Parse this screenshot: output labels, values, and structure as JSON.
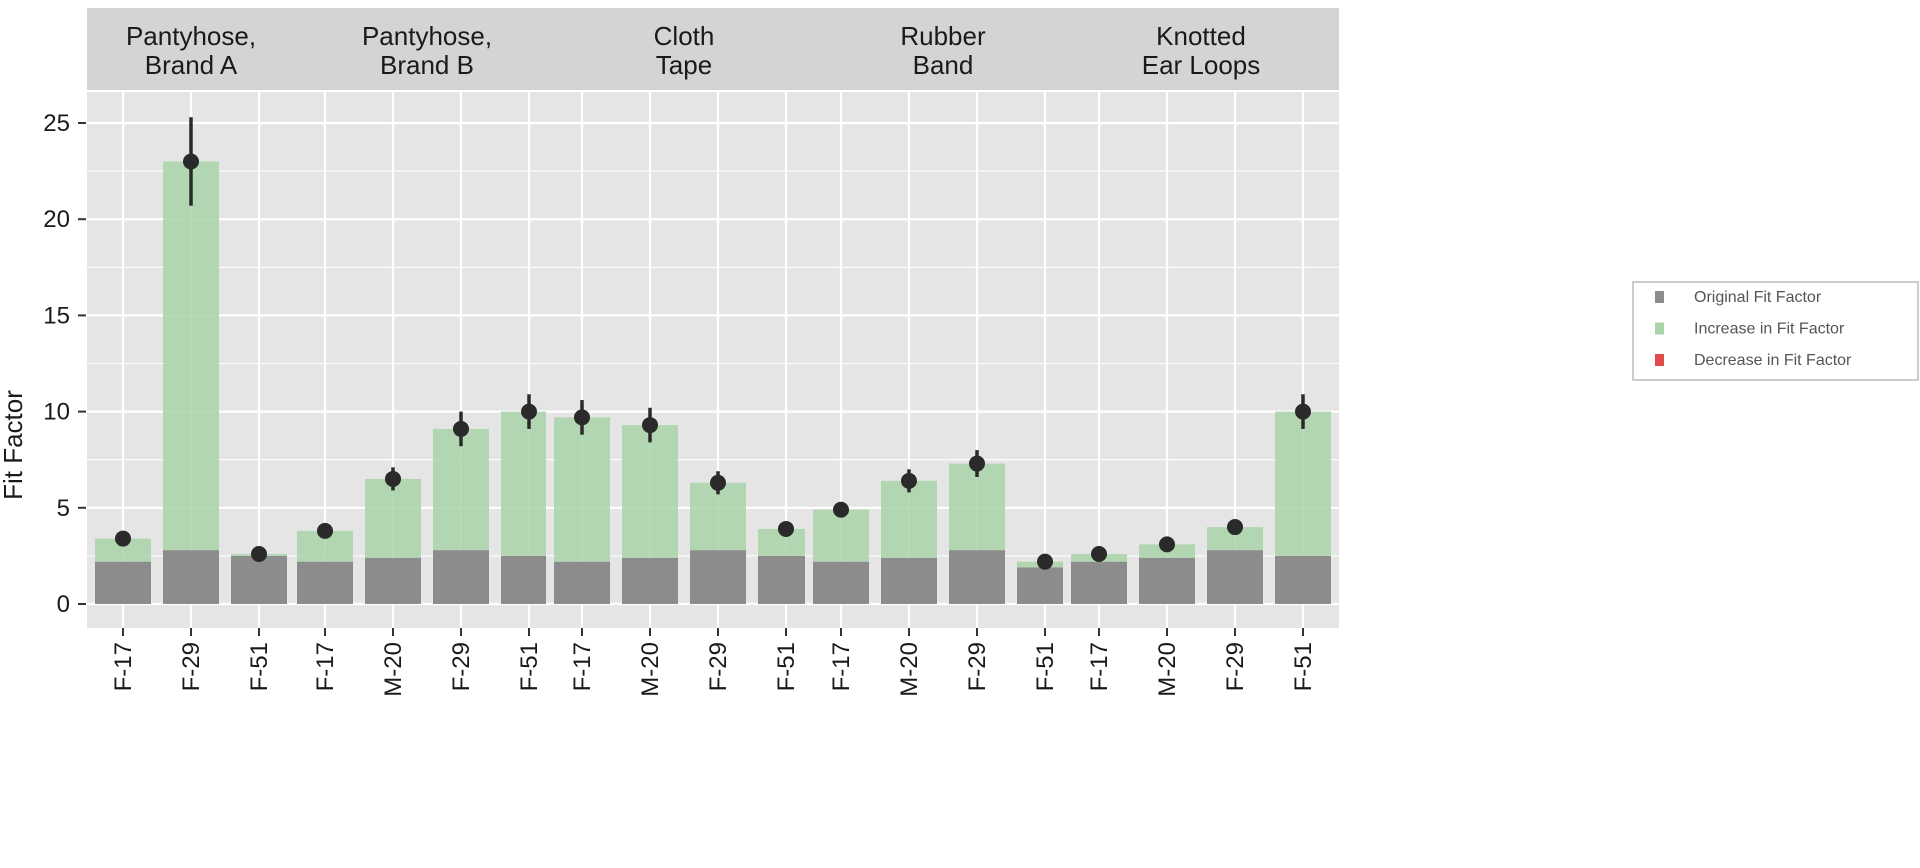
{
  "chart_data": {
    "type": "bar",
    "ylabel": "Fit Factor",
    "xlabel": "",
    "ylim": [
      0,
      27.5
    ],
    "yticks": [
      0,
      5,
      10,
      15,
      20,
      25
    ],
    "grid": true,
    "legend_position": "right",
    "legend": [
      {
        "key": "original",
        "label": "Original Fit Factor",
        "color": "#8c8c8c"
      },
      {
        "key": "increase",
        "label": "Increase in Fit Factor",
        "color": "#a8d4a8"
      },
      {
        "key": "decrease",
        "label": "Decrease in Fit Factor",
        "color": "#e04a4a"
      }
    ],
    "colors": {
      "panel_bg": "#e5e5e5",
      "strip_bg": "#d4d4d4",
      "grid": "#ffffff",
      "original": "#8c8c8c",
      "increase": "#a8d4a8",
      "decrease": "#e04a4a",
      "point": "#2a2a2a"
    },
    "facets": [
      {
        "title_lines": [
          "Pantyhose,",
          "Brand A"
        ],
        "categories": [
          "F-17",
          "F-29",
          "F-51"
        ],
        "original": [
          2.2,
          2.8,
          2.5
        ],
        "modified": [
          3.4,
          23.0,
          2.6
        ],
        "error_low": [
          null,
          20.7,
          null
        ],
        "error_high": [
          null,
          25.3,
          null
        ]
      },
      {
        "title_lines": [
          "Pantyhose,",
          "Brand B"
        ],
        "categories": [
          "F-17",
          "M-20",
          "F-29",
          "F-51"
        ],
        "original": [
          2.2,
          2.4,
          2.8,
          2.5
        ],
        "modified": [
          3.8,
          6.5,
          9.1,
          10.0
        ],
        "error_low": [
          null,
          5.9,
          8.2,
          9.1
        ],
        "error_high": [
          null,
          7.1,
          10.0,
          10.9
        ]
      },
      {
        "title_lines": [
          "Cloth",
          "Tape"
        ],
        "categories": [
          "F-17",
          "M-20",
          "F-29",
          "F-51"
        ],
        "original": [
          2.2,
          2.4,
          2.8,
          2.5
        ],
        "modified": [
          9.7,
          9.3,
          6.3,
          3.9
        ],
        "error_low": [
          8.8,
          8.4,
          5.7,
          null
        ],
        "error_high": [
          10.6,
          10.2,
          6.9,
          null
        ]
      },
      {
        "title_lines": [
          "Rubber",
          "Band"
        ],
        "categories": [
          "F-17",
          "M-20",
          "F-29",
          "F-51"
        ],
        "original": [
          2.2,
          2.4,
          2.8,
          1.9
        ],
        "modified": [
          4.9,
          6.4,
          7.3,
          2.2
        ],
        "error_low": [
          null,
          5.8,
          6.6,
          null
        ],
        "error_high": [
          null,
          7.0,
          8.0,
          null
        ]
      },
      {
        "title_lines": [
          "Knotted",
          "Ear Loops"
        ],
        "categories": [
          "F-17",
          "M-20",
          "F-29",
          "F-51"
        ],
        "original": [
          2.2,
          2.4,
          2.8,
          2.5
        ],
        "modified": [
          2.6,
          3.1,
          4.0,
          10.0
        ],
        "error_low": [
          null,
          null,
          null,
          9.1
        ],
        "error_high": [
          null,
          null,
          null,
          10.9
        ]
      }
    ]
  }
}
